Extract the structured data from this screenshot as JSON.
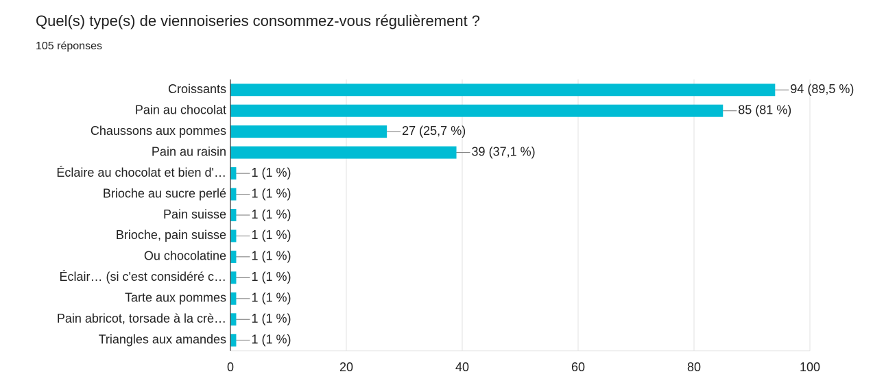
{
  "chart_data": {
    "type": "bar",
    "orientation": "horizontal",
    "title": "Quel(s) type(s) de viennoiseries consommez-vous régulièrement ?",
    "subtitle": "105 réponses",
    "categories": [
      "Croissants",
      "Pain au chocolat",
      "Chaussons aux pommes",
      "Pain au raisin",
      "Éclaire au chocolat et bien d'…",
      "Brioche au sucre perlé",
      "Pain suisse",
      "Brioche, pain suisse",
      "Ou chocolatine",
      "Éclair… (si c'est considéré c…",
      "Tarte aux pommes",
      "Pain abricot, torsade à la crè…",
      "Triangles aux amandes"
    ],
    "values": [
      94,
      85,
      27,
      39,
      1,
      1,
      1,
      1,
      1,
      1,
      1,
      1,
      1
    ],
    "value_labels": [
      "94 (89,5 %)",
      "85 (81 %)",
      "27 (25,7 %)",
      "39 (37,1 %)",
      "1 (1 %)",
      "1 (1 %)",
      "1 (1 %)",
      "1 (1 %)",
      "1 (1 %)",
      "1 (1 %)",
      "1 (1 %)",
      "1 (1 %)",
      "1 (1 %)"
    ],
    "color": "#00bcd4",
    "xlim": [
      0,
      100
    ],
    "xticks": [
      0,
      20,
      40,
      60,
      80,
      100
    ],
    "grid": true
  }
}
